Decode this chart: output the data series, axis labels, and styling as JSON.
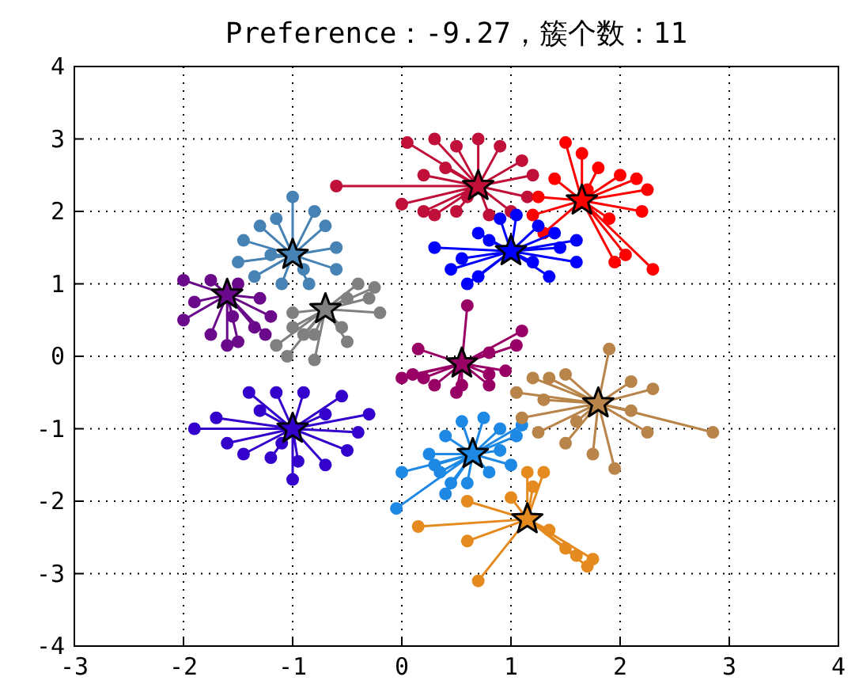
{
  "chart_data": {
    "type": "scatter",
    "title": "Preference：-9.27，簇个数：11",
    "xlim": [
      -3,
      4
    ],
    "ylim": [
      -4,
      4
    ],
    "xticks": [
      -3,
      -2,
      -1,
      0,
      1,
      2,
      3,
      4
    ],
    "yticks": [
      -4,
      -3,
      -2,
      -1,
      0,
      1,
      2,
      3,
      4
    ],
    "grid": true,
    "series": [
      {
        "type": "line",
        "marker": "none",
        "color": "#c0103a",
        "x": [
          0.7,
          -0.6,
          0.7,
          0.05,
          0.7,
          0.3,
          0.7,
          0.5,
          0.7,
          0.7,
          0.7,
          0.9,
          0.7,
          1.1,
          0.7,
          1.2,
          0.7,
          1.15,
          0.7,
          1.0,
          0.7,
          0.8,
          0.7,
          0.5,
          0.7,
          0.2,
          0.7,
          0.0,
          0.7,
          0.2,
          0.7,
          0.4,
          0.7,
          0.3,
          0.7,
          0.6
        ],
        "values": [
          2.35,
          2.35,
          2.35,
          2.95,
          2.35,
          3.0,
          2.35,
          2.9,
          2.35,
          3.0,
          2.35,
          2.9,
          2.35,
          2.7,
          2.35,
          2.5,
          2.35,
          2.2,
          2.35,
          2.0,
          2.35,
          1.95,
          2.35,
          2.0,
          2.35,
          2.0,
          2.35,
          2.1,
          2.35,
          2.5,
          2.35,
          2.6,
          2.35,
          1.95,
          2.35,
          2.2
        ]
      },
      {
        "marker": "circle",
        "color": "#c0103a",
        "x": [
          -0.6,
          0.05,
          0.3,
          0.5,
          0.7,
          0.9,
          1.1,
          1.2,
          1.15,
          1.0,
          0.8,
          0.5,
          0.2,
          0.0,
          0.2,
          0.4,
          0.3,
          0.6
        ],
        "values": [
          2.35,
          2.95,
          3.0,
          2.9,
          3.0,
          2.9,
          2.7,
          2.5,
          2.2,
          2.0,
          1.95,
          2.0,
          2.0,
          2.1,
          2.5,
          2.6,
          1.95,
          2.2
        ]
      },
      {
        "marker": "star",
        "color": "#c0103a",
        "x": [
          0.7
        ],
        "values": [
          2.35
        ]
      },
      {
        "type": "line",
        "marker": "none",
        "color": "#ff0000",
        "x": [
          1.65,
          1.5,
          1.65,
          1.65,
          1.65,
          1.8,
          1.65,
          2.0,
          1.65,
          2.15,
          1.65,
          2.25,
          1.65,
          2.2,
          1.65,
          1.9,
          1.65,
          2.05,
          1.65,
          2.3,
          1.65,
          1.95,
          1.65,
          1.3,
          1.65,
          1.25,
          1.65,
          1.4,
          1.65,
          1.2,
          1.65,
          1.7
        ],
        "values": [
          2.15,
          2.95,
          2.15,
          2.8,
          2.15,
          2.6,
          2.15,
          2.5,
          2.15,
          2.45,
          2.15,
          2.3,
          2.15,
          2.0,
          2.15,
          1.9,
          2.15,
          1.4,
          2.15,
          1.2,
          2.15,
          1.3,
          2.15,
          1.7,
          2.15,
          2.2,
          2.15,
          2.45,
          2.15,
          1.95,
          2.15,
          2.3
        ]
      },
      {
        "marker": "circle",
        "color": "#ff0000",
        "x": [
          1.5,
          1.65,
          1.8,
          2.0,
          2.15,
          2.25,
          2.2,
          1.9,
          2.05,
          2.3,
          1.95,
          1.3,
          1.25,
          1.4,
          1.2,
          1.7
        ],
        "values": [
          2.95,
          2.8,
          2.6,
          2.5,
          2.45,
          2.3,
          2.0,
          1.9,
          1.4,
          1.2,
          1.3,
          1.7,
          2.2,
          2.45,
          1.95,
          2.3
        ]
      },
      {
        "marker": "star",
        "color": "#ff0000",
        "x": [
          1.65
        ],
        "values": [
          2.15
        ]
      },
      {
        "type": "line",
        "marker": "none",
        "color": "#0000ff",
        "x": [
          1.0,
          0.3,
          1.0,
          0.45,
          1.0,
          0.6,
          1.0,
          0.7,
          1.0,
          0.9,
          1.0,
          1.05,
          1.0,
          1.25,
          1.0,
          1.45,
          1.0,
          1.6,
          1.0,
          1.6,
          1.0,
          1.35,
          1.0,
          1.2,
          1.0,
          0.7,
          1.0,
          0.55,
          1.0,
          0.8,
          1.0,
          1.4
        ],
        "values": [
          1.45,
          1.5,
          1.45,
          1.2,
          1.45,
          1.0,
          1.45,
          1.7,
          1.45,
          1.9,
          1.45,
          1.95,
          1.45,
          1.8,
          1.45,
          1.5,
          1.45,
          1.3,
          1.45,
          1.6,
          1.45,
          1.1,
          1.45,
          1.3,
          1.45,
          1.1,
          1.45,
          1.35,
          1.45,
          1.6,
          1.45,
          1.7
        ]
      },
      {
        "marker": "circle",
        "color": "#0000ff",
        "x": [
          0.3,
          0.45,
          0.6,
          0.7,
          0.9,
          1.05,
          1.25,
          1.45,
          1.6,
          1.6,
          1.35,
          1.2,
          0.7,
          0.55,
          0.8,
          1.4
        ],
        "values": [
          1.5,
          1.2,
          1.0,
          1.7,
          1.9,
          1.95,
          1.8,
          1.5,
          1.3,
          1.6,
          1.1,
          1.3,
          1.1,
          1.35,
          1.6,
          1.7
        ]
      },
      {
        "marker": "star",
        "color": "#0000ff",
        "x": [
          1.0
        ],
        "values": [
          1.45
        ]
      },
      {
        "type": "line",
        "marker": "none",
        "color": "#4682b4",
        "x": [
          -1.0,
          -1.0,
          -1.0,
          -0.8,
          -1.0,
          -0.7,
          -1.0,
          -0.6,
          -1.0,
          -0.6,
          -1.0,
          -0.85,
          -1.0,
          -1.1,
          -1.0,
          -1.35,
          -1.0,
          -1.5,
          -1.0,
          -1.45,
          -1.0,
          -1.3,
          -1.0,
          -1.15,
          -1.0,
          -0.9,
          -1.0,
          -1.2
        ],
        "values": [
          1.4,
          2.2,
          1.4,
          2.0,
          1.4,
          1.8,
          1.4,
          1.5,
          1.4,
          1.2,
          1.4,
          1.0,
          1.4,
          1.0,
          1.4,
          1.1,
          1.4,
          1.3,
          1.4,
          1.6,
          1.4,
          1.8,
          1.4,
          1.9,
          1.4,
          1.2,
          1.4,
          1.4
        ]
      },
      {
        "marker": "circle",
        "color": "#4682b4",
        "x": [
          -1.0,
          -0.8,
          -0.7,
          -0.6,
          -0.6,
          -0.85,
          -1.1,
          -1.35,
          -1.5,
          -1.45,
          -1.3,
          -1.15,
          -0.9,
          -1.2
        ],
        "values": [
          2.2,
          2.0,
          1.8,
          1.5,
          1.2,
          1.0,
          1.0,
          1.1,
          1.3,
          1.6,
          1.8,
          1.9,
          1.2,
          1.4
        ]
      },
      {
        "marker": "star",
        "color": "#4682b4",
        "x": [
          -1.0
        ],
        "values": [
          1.4
        ]
      },
      {
        "type": "line",
        "marker": "none",
        "color": "#6a0a8a",
        "x": [
          -1.6,
          -2.0,
          -1.6,
          -1.75,
          -1.6,
          -1.5,
          -1.6,
          -1.3,
          -1.6,
          -1.2,
          -1.6,
          -1.35,
          -1.6,
          -1.5,
          -1.6,
          -1.75,
          -1.6,
          -2.0,
          -1.6,
          -1.9,
          -1.6,
          -1.55,
          -1.6,
          -1.25,
          -1.6,
          -1.6
        ],
        "values": [
          0.85,
          1.05,
          0.85,
          1.05,
          0.85,
          1.0,
          0.85,
          0.8,
          0.85,
          0.55,
          0.85,
          0.4,
          0.85,
          0.2,
          0.85,
          0.3,
          0.85,
          0.5,
          0.85,
          0.75,
          0.85,
          0.55,
          0.85,
          0.3,
          0.85,
          0.15
        ]
      },
      {
        "marker": "circle",
        "color": "#6a0a8a",
        "x": [
          -2.0,
          -1.75,
          -1.5,
          -1.3,
          -1.2,
          -1.35,
          -1.5,
          -1.75,
          -2.0,
          -1.9,
          -1.55,
          -1.25,
          -1.6
        ],
        "values": [
          1.05,
          1.05,
          1.0,
          0.8,
          0.55,
          0.4,
          0.2,
          0.3,
          0.5,
          0.75,
          0.55,
          0.3,
          0.15
        ]
      },
      {
        "marker": "star",
        "color": "#6a0a8a",
        "x": [
          -1.6
        ],
        "values": [
          0.85
        ]
      },
      {
        "type": "line",
        "marker": "none",
        "color": "#808080",
        "x": [
          -0.7,
          -0.25,
          -0.7,
          -0.4,
          -0.7,
          -0.5,
          -0.7,
          -0.2,
          -0.7,
          -0.55,
          -0.7,
          -0.8,
          -0.7,
          -1.0,
          -0.7,
          -1.15,
          -0.7,
          -1.05,
          -0.7,
          -0.9,
          -0.7,
          -0.8,
          -0.7,
          -0.5,
          -0.7,
          -1.0,
          -0.7,
          -0.3
        ],
        "values": [
          0.65,
          0.95,
          0.65,
          1.0,
          0.65,
          0.8,
          0.65,
          0.6,
          0.65,
          0.4,
          0.65,
          0.3,
          0.65,
          0.4,
          0.65,
          0.15,
          0.65,
          0.0,
          0.65,
          0.3,
          0.65,
          -0.05,
          0.65,
          0.2,
          0.65,
          0.6,
          0.65,
          0.8
        ]
      },
      {
        "marker": "circle",
        "color": "#808080",
        "x": [
          -0.25,
          -0.4,
          -0.5,
          -0.2,
          -0.55,
          -0.8,
          -1.0,
          -1.15,
          -1.05,
          -0.9,
          -0.8,
          -0.5,
          -1.0,
          -0.3
        ],
        "values": [
          0.95,
          1.0,
          0.8,
          0.6,
          0.4,
          0.3,
          0.4,
          0.15,
          0.0,
          0.3,
          -0.05,
          0.2,
          0.6,
          0.8
        ]
      },
      {
        "marker": "star",
        "color": "#808080",
        "x": [
          -0.7
        ],
        "values": [
          0.65
        ]
      },
      {
        "type": "line",
        "marker": "none",
        "color": "#990066",
        "x": [
          0.55,
          0.6,
          0.55,
          1.1,
          0.55,
          1.05,
          0.55,
          0.8,
          0.55,
          0.95,
          0.55,
          0.8,
          0.55,
          0.55,
          0.55,
          0.5,
          0.55,
          0.15,
          0.55,
          0.1,
          0.55,
          0.3,
          0.55,
          0.2,
          0.55,
          0.0,
          0.55,
          0.8
        ],
        "values": [
          -0.1,
          0.7,
          -0.1,
          0.35,
          -0.1,
          0.15,
          -0.1,
          0.05,
          -0.1,
          -0.2,
          -0.1,
          -0.4,
          -0.1,
          -0.4,
          -0.1,
          -0.5,
          -0.1,
          0.1,
          -0.1,
          -0.25,
          -0.1,
          -0.4,
          -0.1,
          -0.3,
          -0.1,
          -0.3,
          -0.1,
          -0.25
        ]
      },
      {
        "marker": "circle",
        "color": "#990066",
        "x": [
          0.6,
          1.1,
          1.05,
          0.8,
          0.95,
          0.8,
          0.55,
          0.5,
          0.15,
          0.1,
          0.3,
          0.2,
          0.0,
          0.8
        ],
        "values": [
          0.7,
          0.35,
          0.15,
          0.05,
          -0.2,
          -0.4,
          -0.4,
          -0.5,
          0.1,
          -0.25,
          -0.4,
          -0.3,
          -0.3,
          -0.25
        ]
      },
      {
        "marker": "star",
        "color": "#990066",
        "x": [
          0.55
        ],
        "values": [
          -0.1
        ]
      },
      {
        "type": "line",
        "marker": "none",
        "color": "#3300cc",
        "x": [
          -1.0,
          -1.9,
          -1.0,
          -1.7,
          -1.0,
          -1.4,
          -1.0,
          -1.15,
          -1.0,
          -0.9,
          -1.0,
          -0.55,
          -1.0,
          -0.3,
          -1.0,
          -0.4,
          -1.0,
          -0.5,
          -1.0,
          -0.7,
          -1.0,
          -0.95,
          -1.0,
          -1.2,
          -1.0,
          -1.45,
          -1.0,
          -1.6,
          -1.0,
          -1.0,
          -1.0,
          -1.3,
          -1.0,
          -0.7,
          -1.0,
          -1.1
        ],
        "values": [
          -1.0,
          -1.0,
          -1.0,
          -0.85,
          -1.0,
          -0.5,
          -1.0,
          -0.5,
          -1.0,
          -0.5,
          -1.0,
          -0.55,
          -1.0,
          -0.8,
          -1.0,
          -1.05,
          -1.0,
          -1.3,
          -1.0,
          -1.5,
          -1.0,
          -1.45,
          -1.0,
          -1.4,
          -1.0,
          -1.35,
          -1.0,
          -1.2,
          -1.0,
          -1.7,
          -1.0,
          -0.75,
          -1.0,
          -0.8,
          -1.0,
          -1.2
        ]
      },
      {
        "marker": "circle",
        "color": "#3300cc",
        "x": [
          -1.9,
          -1.7,
          -1.4,
          -1.15,
          -0.9,
          -0.55,
          -0.3,
          -0.4,
          -0.5,
          -0.7,
          -0.95,
          -1.2,
          -1.45,
          -1.6,
          -1.0,
          -1.3,
          -0.7,
          -1.1
        ],
        "values": [
          -1.0,
          -0.85,
          -0.5,
          -0.5,
          -0.5,
          -0.55,
          -0.8,
          -1.05,
          -1.3,
          -1.5,
          -1.45,
          -1.4,
          -1.35,
          -1.2,
          -1.7,
          -0.75,
          -0.8,
          -1.2
        ]
      },
      {
        "marker": "star",
        "color": "#3300cc",
        "x": [
          -1.0
        ],
        "values": [
          -1.0
        ]
      },
      {
        "type": "line",
        "marker": "none",
        "color": "#1e88e5",
        "x": [
          0.65,
          0.0,
          0.65,
          0.25,
          0.65,
          0.4,
          0.65,
          0.35,
          0.65,
          0.55,
          0.65,
          0.75,
          0.65,
          0.9,
          0.65,
          1.05,
          0.65,
          1.1,
          0.65,
          0.9,
          0.65,
          0.8,
          0.65,
          0.6,
          0.65,
          0.45,
          0.65,
          0.4,
          0.65,
          -0.05,
          0.65,
          0.3,
          0.65,
          1.0
        ],
        "values": [
          -1.35,
          -1.6,
          -1.35,
          -1.35,
          -1.35,
          -1.1,
          -1.35,
          -1.6,
          -1.35,
          -0.9,
          -1.35,
          -0.85,
          -1.35,
          -1.0,
          -1.35,
          -1.1,
          -1.35,
          -0.95,
          -1.35,
          -1.3,
          -1.35,
          -1.6,
          -1.35,
          -1.75,
          -1.35,
          -1.75,
          -1.35,
          -1.9,
          -1.35,
          -2.1,
          -1.35,
          -1.5,
          -1.35,
          -1.5
        ]
      },
      {
        "marker": "circle",
        "color": "#1e88e5",
        "x": [
          0.0,
          0.25,
          0.4,
          0.35,
          0.55,
          0.75,
          0.9,
          1.05,
          1.1,
          0.9,
          0.8,
          0.6,
          0.45,
          0.4,
          -0.05,
          0.3,
          1.0
        ],
        "values": [
          -1.6,
          -1.35,
          -1.1,
          -1.6,
          -0.9,
          -0.85,
          -1.0,
          -1.1,
          -0.95,
          -1.3,
          -1.6,
          -1.75,
          -1.75,
          -1.9,
          -2.1,
          -1.5,
          -1.5
        ]
      },
      {
        "marker": "star",
        "color": "#1e88e5",
        "x": [
          0.65
        ],
        "values": [
          -1.35
        ]
      },
      {
        "type": "line",
        "marker": "none",
        "color": "#b8844a",
        "x": [
          1.8,
          1.05,
          1.8,
          1.2,
          1.8,
          1.35,
          1.8,
          1.5,
          1.8,
          1.9,
          1.8,
          2.1,
          1.8,
          2.3,
          1.8,
          1.3,
          1.8,
          1.1,
          1.8,
          1.25,
          1.8,
          1.5,
          1.8,
          1.75,
          1.8,
          1.95,
          1.8,
          2.25,
          1.8,
          2.85,
          1.8,
          2.1,
          1.8,
          1.6
        ],
        "values": [
          -0.65,
          -0.5,
          -0.65,
          -0.3,
          -0.65,
          -0.3,
          -0.65,
          -0.25,
          -0.65,
          0.1,
          -0.65,
          -0.35,
          -0.65,
          -0.45,
          -0.65,
          -0.6,
          -0.65,
          -0.85,
          -0.65,
          -1.05,
          -0.65,
          -1.2,
          -0.65,
          -1.35,
          -0.65,
          -1.55,
          -0.65,
          -1.05,
          -0.65,
          -1.05,
          -0.65,
          -0.75,
          -0.65,
          -0.9
        ]
      },
      {
        "marker": "circle",
        "color": "#b8844a",
        "x": [
          1.05,
          1.2,
          1.35,
          1.5,
          1.9,
          2.1,
          2.3,
          1.3,
          1.1,
          1.25,
          1.5,
          1.75,
          1.95,
          2.25,
          2.85,
          2.1,
          1.6
        ],
        "values": [
          -0.5,
          -0.3,
          -0.3,
          -0.25,
          0.1,
          -0.35,
          -0.45,
          -0.6,
          -0.85,
          -1.05,
          -1.2,
          -1.35,
          -1.55,
          -1.05,
          -1.05,
          -0.75,
          -0.9
        ]
      },
      {
        "marker": "star",
        "color": "#b8844a",
        "x": [
          1.8
        ],
        "values": [
          -0.65
        ]
      },
      {
        "type": "line",
        "marker": "none",
        "color": "#e58a1e",
        "x": [
          1.15,
          1.0,
          1.15,
          1.15,
          1.15,
          1.2,
          1.15,
          1.3,
          1.15,
          0.6,
          1.15,
          0.15,
          1.15,
          0.6,
          1.15,
          1.35,
          1.15,
          1.5,
          1.15,
          1.6,
          1.15,
          1.75,
          1.15,
          1.7,
          1.15,
          0.7
        ],
        "values": [
          -2.25,
          -1.95,
          -2.25,
          -1.6,
          -2.25,
          -1.8,
          -2.25,
          -1.6,
          -2.25,
          -2.0,
          -2.25,
          -2.35,
          -2.25,
          -2.55,
          -2.25,
          -2.4,
          -2.25,
          -2.65,
          -2.25,
          -2.75,
          -2.25,
          -2.8,
          -2.25,
          -2.9,
          -2.25,
          -3.1
        ]
      },
      {
        "marker": "circle",
        "color": "#e58a1e",
        "x": [
          1.0,
          1.15,
          1.2,
          1.3,
          0.6,
          0.15,
          0.6,
          1.35,
          1.5,
          1.6,
          1.75,
          1.7,
          0.7
        ],
        "values": [
          -1.95,
          -1.6,
          -1.8,
          -1.6,
          -2.0,
          -2.35,
          -2.55,
          -2.4,
          -2.65,
          -2.75,
          -2.8,
          -2.9,
          -3.1
        ]
      },
      {
        "marker": "star",
        "color": "#e58a1e",
        "x": [
          1.15
        ],
        "values": [
          -2.25
        ]
      }
    ]
  }
}
